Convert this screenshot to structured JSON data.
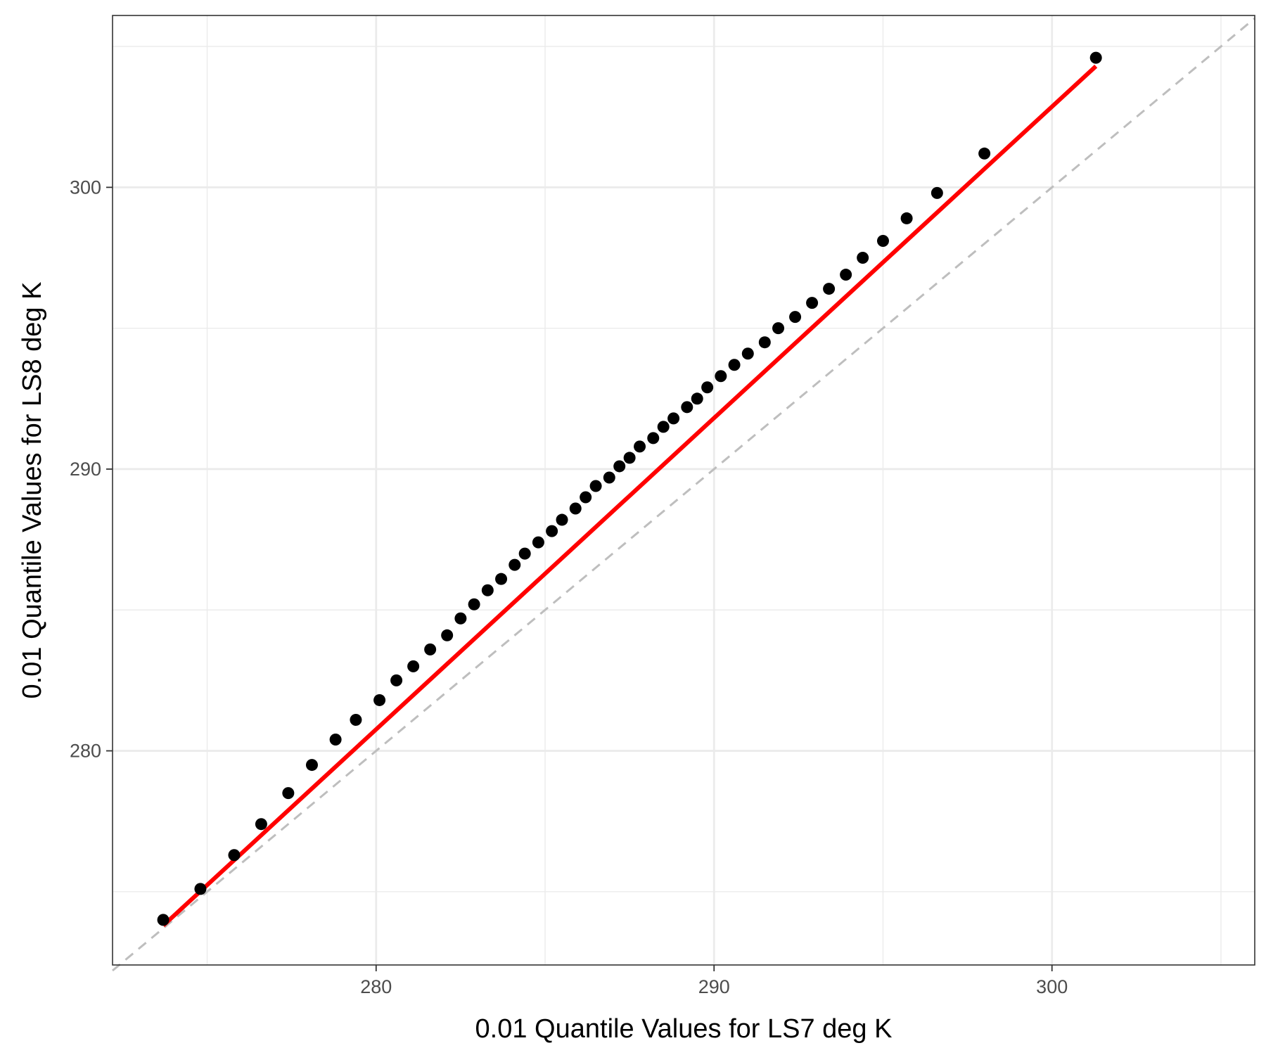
{
  "chart_data": {
    "type": "scatter",
    "title": "",
    "xlabel": "0.01 Quantile Values for LS7 deg K",
    "ylabel": "0.01 Quantile Values for LS8 deg K",
    "xlim": [
      272.2,
      306.0
    ],
    "ylim": [
      272.4,
      306.1
    ],
    "x_major_ticks": [
      280,
      290,
      300
    ],
    "x_minor_ticks": [
      275,
      285,
      295,
      305
    ],
    "y_major_ticks": [
      280,
      290,
      300
    ],
    "y_minor_ticks": [
      275,
      285,
      295,
      305
    ],
    "grid": true,
    "legend": "none",
    "colors": {
      "points": "#000000",
      "fit_line": "#ff0000",
      "reference_line": "#bebebe",
      "grid": "#ebebeb",
      "panel_border": "#333333"
    },
    "series": [
      {
        "kind": "points",
        "x": [
          273.7,
          274.8,
          275.8,
          276.6,
          277.4,
          278.1,
          278.8,
          279.4,
          280.1,
          280.6,
          281.1,
          281.6,
          282.1,
          282.5,
          282.9,
          283.3,
          283.7,
          284.1,
          284.4,
          284.8,
          285.2,
          285.5,
          285.9,
          286.2,
          286.5,
          286.9,
          287.2,
          287.5,
          287.8,
          288.2,
          288.5,
          288.8,
          289.2,
          289.5,
          289.8,
          290.2,
          290.6,
          291.0,
          291.5,
          291.9,
          292.4,
          292.9,
          293.4,
          293.9,
          294.4,
          295.0,
          295.7,
          296.6,
          298.0,
          301.3
        ],
        "y": [
          274.0,
          275.1,
          276.3,
          277.4,
          278.5,
          279.5,
          280.4,
          281.1,
          281.8,
          282.5,
          283.0,
          283.6,
          284.1,
          284.7,
          285.2,
          285.7,
          286.1,
          286.6,
          287.0,
          287.4,
          287.8,
          288.2,
          288.6,
          289.0,
          289.4,
          289.7,
          290.1,
          290.4,
          290.8,
          291.1,
          291.5,
          291.8,
          292.2,
          292.5,
          292.9,
          293.3,
          293.7,
          294.1,
          294.5,
          295.0,
          295.4,
          295.9,
          296.4,
          296.9,
          297.5,
          298.1,
          298.9,
          299.8,
          301.2,
          304.6
        ]
      },
      {
        "kind": "fit_line",
        "x": [
          273.7,
          301.3
        ],
        "y": [
          273.8,
          304.3
        ]
      },
      {
        "kind": "reference_line",
        "style": "dashed",
        "x": [
          272.2,
          306.0
        ],
        "y": [
          272.2,
          306.0
        ]
      }
    ]
  }
}
